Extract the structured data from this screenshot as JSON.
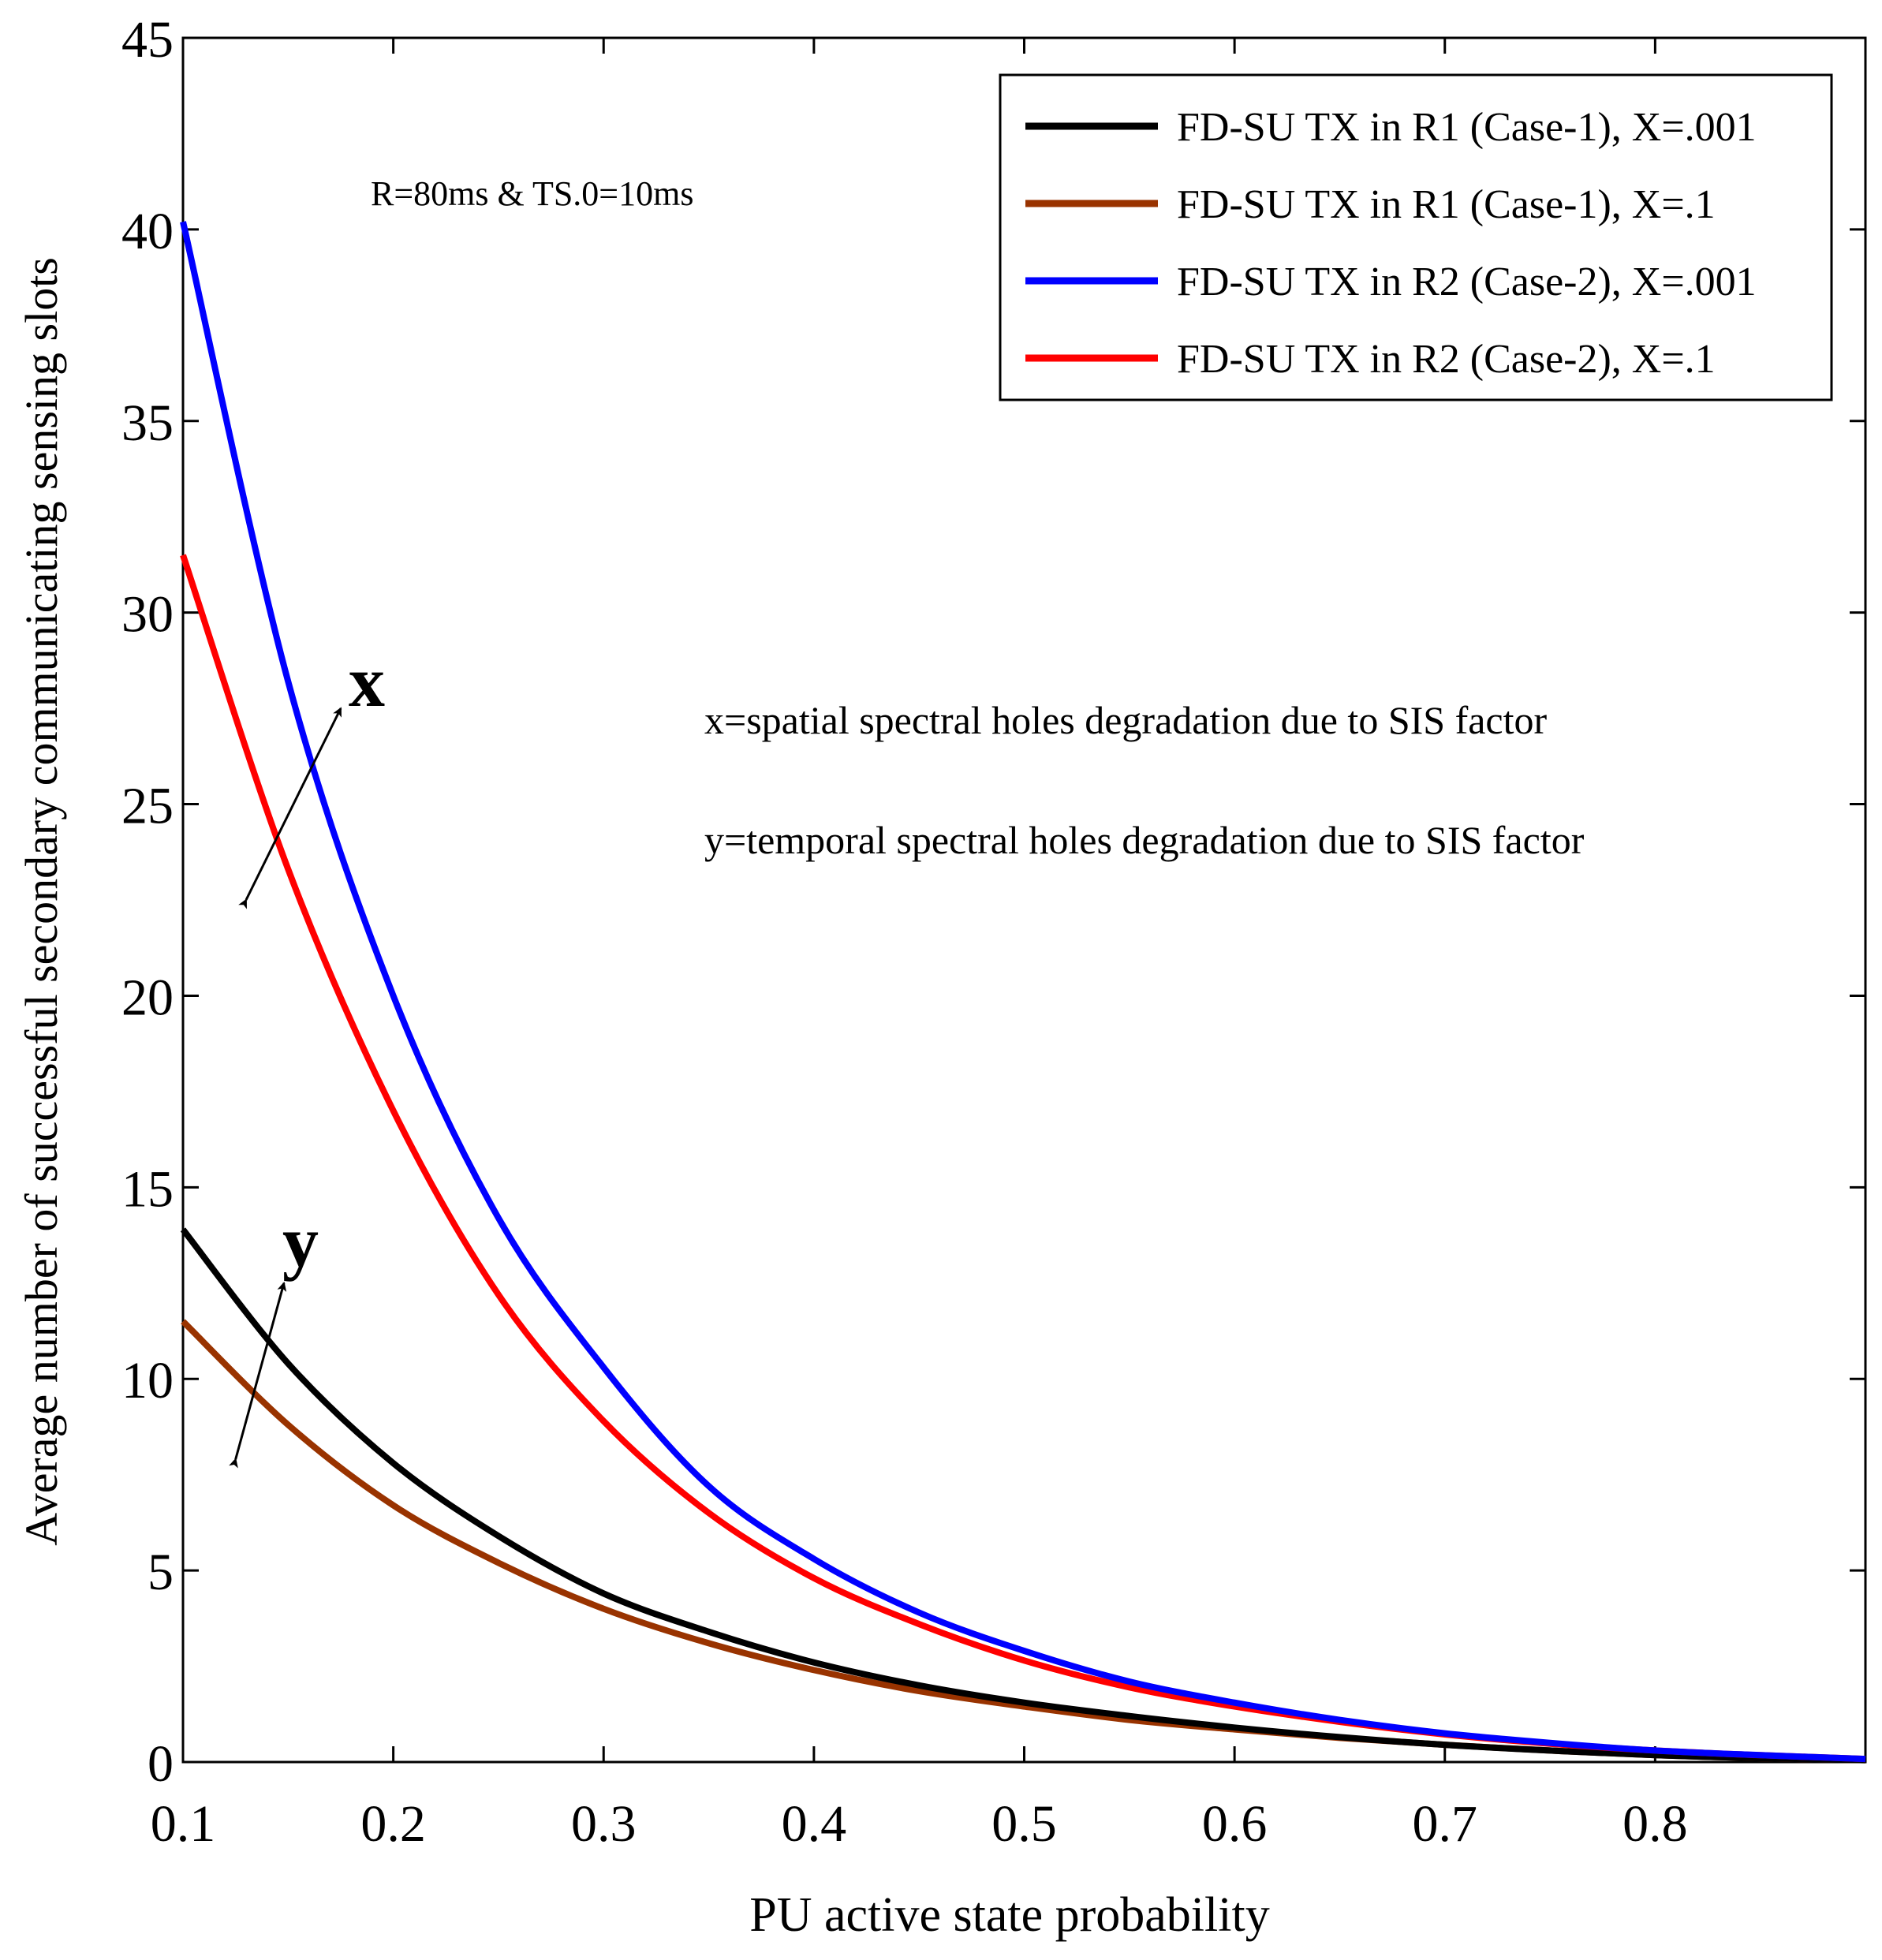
{
  "chart_data": {
    "type": "line",
    "title": "",
    "xlabel": "PU active state probability",
    "ylabel": "Average number of successful secondary communicating sensing slots",
    "xlim": [
      0.1,
      0.9
    ],
    "ylim": [
      0,
      45
    ],
    "xticks": [
      0.1,
      0.2,
      0.3,
      0.4,
      0.5,
      0.6,
      0.7,
      0.8
    ],
    "yticks": [
      0,
      5,
      10,
      15,
      20,
      25,
      30,
      35,
      40,
      45
    ],
    "xtick_labels": [
      "0.1",
      "0.2",
      "0.3",
      "0.4",
      "0.5",
      "0.6",
      "0.7",
      "0.8"
    ],
    "ytick_labels": [
      "0",
      "5",
      "10",
      "15",
      "20",
      "25",
      "30",
      "35",
      "40",
      "45"
    ],
    "grid": false,
    "legend_position": "top-right",
    "x": [
      0.1,
      0.15,
      0.2,
      0.25,
      0.3,
      0.35,
      0.4,
      0.45,
      0.5,
      0.55,
      0.6,
      0.65,
      0.7,
      0.75,
      0.8,
      0.85,
      0.9
    ],
    "series": [
      {
        "name": "FD-SU TX in R1 (Case-1), X=.001",
        "color": "#000000",
        "values": [
          13.9,
          10.4,
          7.8,
          5.9,
          4.4,
          3.4,
          2.6,
          2.0,
          1.55,
          1.2,
          0.9,
          0.65,
          0.45,
          0.3,
          0.18,
          0.1,
          0.05
        ]
      },
      {
        "name": "FD-SU TX in R1 (Case-1), X=.1",
        "color": "#993300",
        "values": [
          11.5,
          8.8,
          6.7,
          5.2,
          4.0,
          3.1,
          2.4,
          1.85,
          1.45,
          1.1,
          0.85,
          0.63,
          0.45,
          0.3,
          0.18,
          0.1,
          0.05
        ]
      },
      {
        "name": "FD-SU TX in R2 (Case-2), X=.001",
        "color": "#0000ff",
        "values": [
          40.2,
          28.2,
          20.0,
          14.2,
          10.3,
          7.2,
          5.3,
          3.9,
          2.9,
          2.1,
          1.55,
          1.1,
          0.75,
          0.5,
          0.3,
          0.18,
          0.08
        ]
      },
      {
        "name": "FD-SU TX in R2 (Case-2), X=.1",
        "color": "#ff0000",
        "values": [
          31.5,
          23.3,
          17.0,
          12.2,
          8.9,
          6.5,
          4.8,
          3.6,
          2.65,
          1.95,
          1.45,
          1.05,
          0.72,
          0.48,
          0.3,
          0.18,
          0.08
        ]
      }
    ],
    "annotations": {
      "params": "R=80ms & TS.0=10ms",
      "x_label": "x",
      "y_label": "y",
      "x_note": "x=spatial spectral holes degradation due to SIS factor",
      "y_note": "y=temporal spectral holes degradation due to SIS factor",
      "x_arrow": {
        "from": [
          0.13,
          22.5
        ],
        "to": [
          0.175,
          27.5
        ]
      },
      "y_arrow": {
        "from": [
          0.125,
          7.9
        ],
        "to": [
          0.148,
          12.5
        ]
      }
    }
  }
}
